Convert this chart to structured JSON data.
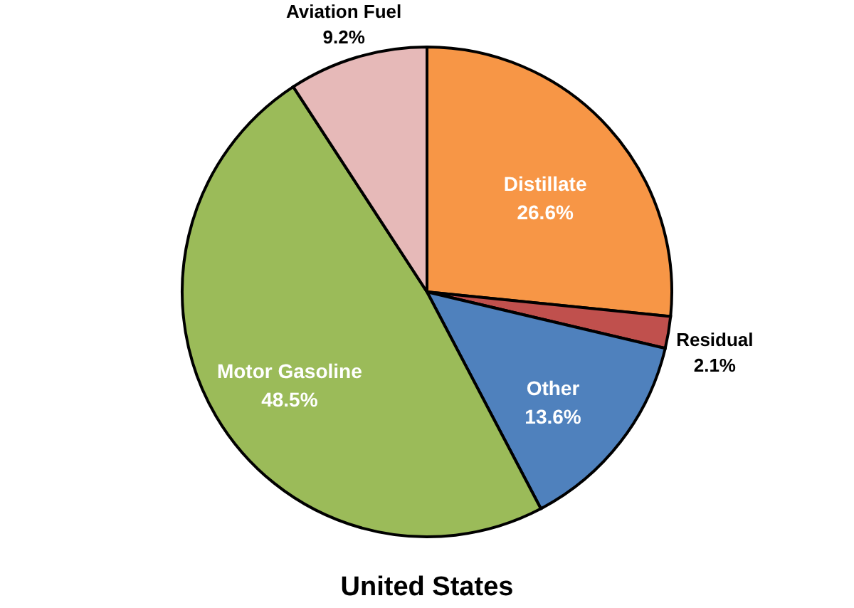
{
  "chart_data": {
    "type": "pie",
    "title": "United States",
    "categories": [
      "Distillate",
      "Residual",
      "Other",
      "Motor Gasoline",
      "Aviation Fuel"
    ],
    "values": [
      26.6,
      2.1,
      13.6,
      48.5,
      9.2
    ],
    "value_labels": [
      "26.6%",
      "2.1%",
      "13.6%",
      "48.5%",
      "9.2%"
    ],
    "colors": [
      "#f79646",
      "#c0504d",
      "#4f81bd",
      "#9bbb59",
      "#e6b9b8"
    ],
    "legend": false
  }
}
